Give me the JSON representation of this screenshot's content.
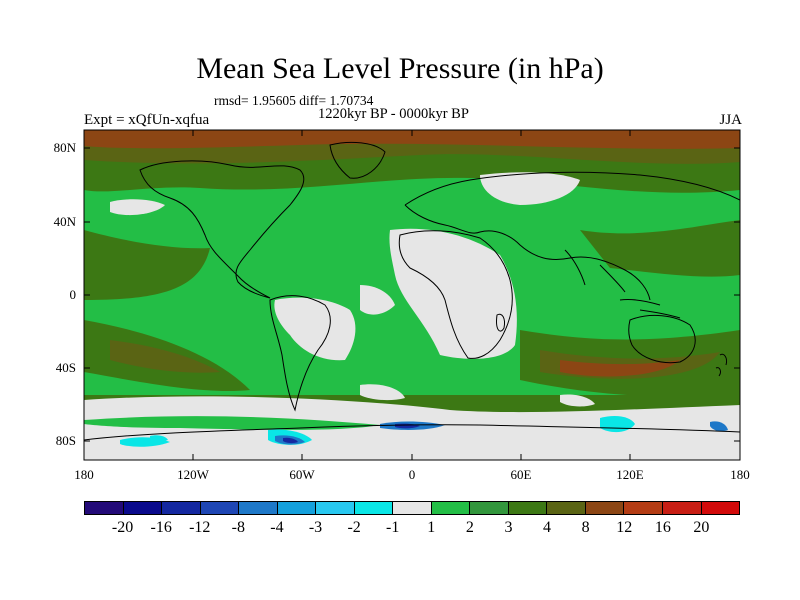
{
  "title": "Mean Sea Level Pressure (in hPa)",
  "stats": "rmsd= 1.95605 diff= 1.70734",
  "period": "1220kyr BP - 0000kyr BP",
  "experiment": "Expt = xQfUn-xqfua",
  "season": "JJA",
  "axes": {
    "lat_ticks": [
      "80N",
      "40N",
      "0",
      "40S",
      "80S"
    ],
    "lon_ticks": [
      "180",
      "120W",
      "60W",
      "0",
      "60E",
      "120E",
      "180"
    ]
  },
  "colorbar": {
    "colors": [
      "#230a78",
      "#0a0a8c",
      "#1428a0",
      "#1e46b4",
      "#1e78c8",
      "#14a0dc",
      "#28c8f0",
      "#0ae6e6",
      "#e6e6e6",
      "#23be46",
      "#32963c",
      "#3c7814",
      "#5a6414",
      "#8c4614",
      "#b43c14",
      "#c81e14",
      "#d20a0a"
    ],
    "labels": [
      "-20",
      "-16",
      "-12",
      "-8",
      "-4",
      "-3",
      "-2",
      "-1",
      "1",
      "2",
      "3",
      "4",
      "8",
      "12",
      "16",
      "20"
    ]
  },
  "regions": {
    "green": "#23be46",
    "olive": "#3c7814",
    "darkolive": "#5a6414",
    "brown": "#8c4614",
    "white": "#e6e6e6",
    "cyan": "#0ae6e6",
    "blue": "#1e78c8",
    "darkblue": "#1428a0"
  }
}
